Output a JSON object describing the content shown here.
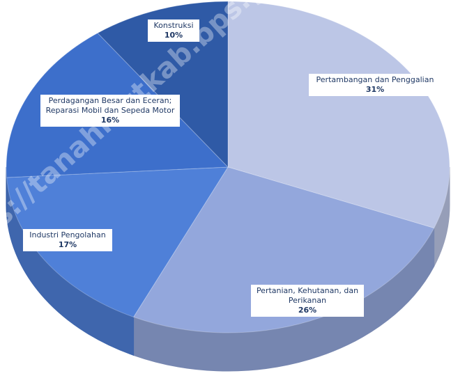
{
  "chart_data": {
    "type": "pie",
    "categories": [
      "Pertambangan dan Penggalian",
      "Pertanian, Kehutanan, dan Perikanan",
      "Industri Pengolahan",
      "Perdagangan Besar dan Eceran; Reparasi Mobil dan Sepeda Motor",
      "Konstruksi"
    ],
    "values": [
      31,
      26,
      17,
      16,
      10
    ],
    "value_labels": [
      "31%",
      "26%",
      "17%",
      "16%",
      "10%"
    ],
    "colors": [
      "#bcc6e6",
      "#93a7dc",
      "#4f80d8",
      "#3d6fcb",
      "#2f5aa6"
    ],
    "watermark": "s://tanahlautkab.bps.go.id"
  }
}
